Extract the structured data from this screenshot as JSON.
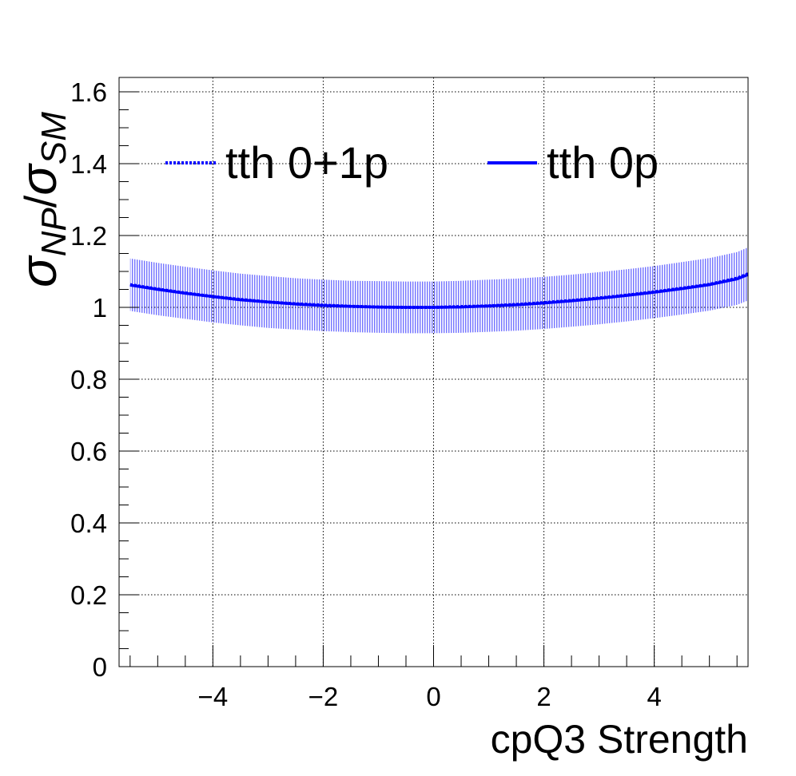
{
  "chart_data": {
    "type": "line",
    "title": "",
    "xlabel": "cpQ3 Strength",
    "ylabel": {
      "symbol": "σ",
      "numerator_sub": "NP",
      "slash": "/",
      "denominator_sub": "SM"
    },
    "xlim": [
      -5.7,
      5.7
    ],
    "ylim": [
      0,
      1.64
    ],
    "x_ticks": [
      -4,
      -2,
      0,
      2,
      4
    ],
    "x_tick_labels": [
      "−4",
      "−2",
      "0",
      "2",
      "4"
    ],
    "y_ticks": [
      0,
      0.2,
      0.4,
      0.6,
      0.8,
      1,
      1.2,
      1.4,
      1.6
    ],
    "y_tick_labels": [
      "0",
      "0.2",
      "0.4",
      "0.6",
      "0.8",
      "1",
      "1.2",
      "1.4",
      "1.6"
    ],
    "grid": true,
    "legend_position": "top",
    "x": [
      -5.5,
      -5,
      -4.5,
      -4,
      -3.5,
      -3,
      -2.5,
      -2,
      -1.5,
      -1,
      -0.5,
      0,
      0.5,
      1,
      1.5,
      2,
      2.5,
      3,
      3.5,
      4,
      4.5,
      5,
      5.5,
      5.7
    ],
    "series": [
      {
        "name": "tth 0+1p",
        "style": "dotted",
        "color": "#0000ff",
        "values": [
          1.063,
          1.051,
          1.04,
          1.03,
          1.022,
          1.015,
          1.01,
          1.006,
          1.003,
          1.001,
          1.0,
          1.0,
          1.002,
          1.004,
          1.008,
          1.013,
          1.019,
          1.026,
          1.034,
          1.043,
          1.053,
          1.064,
          1.081,
          1.093
        ]
      },
      {
        "name": "tth 0p",
        "style": "solid",
        "color": "#0000ff",
        "values": [
          1.062,
          1.05,
          1.039,
          1.03,
          1.021,
          1.015,
          1.009,
          1.005,
          1.003,
          1.001,
          1.0,
          1.0,
          1.001,
          1.004,
          1.007,
          1.012,
          1.018,
          1.025,
          1.033,
          1.042,
          1.052,
          1.063,
          1.079,
          1.091
        ]
      }
    ],
    "band": {
      "color": "#0000ff",
      "lower": [
        0.99,
        0.978,
        0.968,
        0.958,
        0.95,
        0.943,
        0.938,
        0.934,
        0.931,
        0.929,
        0.928,
        0.928,
        0.929,
        0.932,
        0.935,
        0.94,
        0.946,
        0.953,
        0.961,
        0.97,
        0.98,
        0.991,
        1.007,
        1.019
      ],
      "upper": [
        1.136,
        1.124,
        1.113,
        1.103,
        1.094,
        1.087,
        1.081,
        1.077,
        1.074,
        1.073,
        1.072,
        1.072,
        1.074,
        1.077,
        1.08,
        1.085,
        1.091,
        1.098,
        1.106,
        1.115,
        1.126,
        1.137,
        1.154,
        1.167
      ]
    }
  }
}
